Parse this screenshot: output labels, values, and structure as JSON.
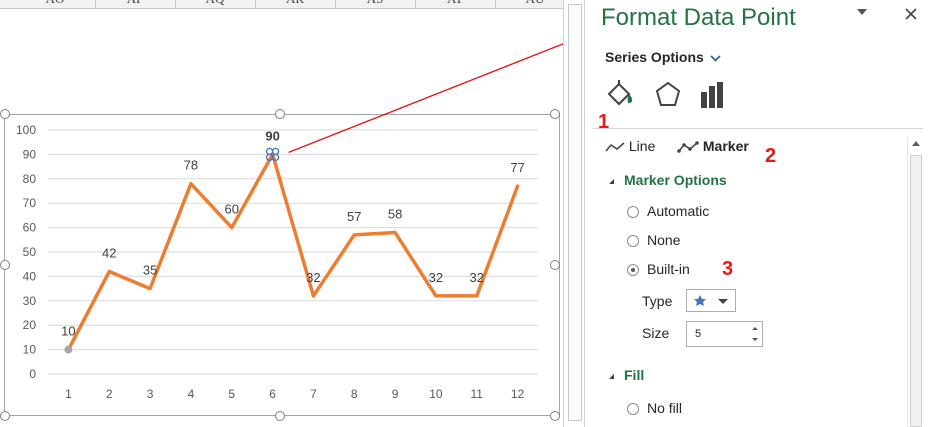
{
  "sheet": {
    "columns": [
      "AO",
      "AP",
      "AQ",
      "AR",
      "AS",
      "AT",
      "AU"
    ]
  },
  "chart_data": {
    "type": "line",
    "categories": [
      "1",
      "2",
      "3",
      "4",
      "5",
      "6",
      "7",
      "8",
      "9",
      "10",
      "11",
      "12"
    ],
    "series": [
      {
        "values": [
          10,
          42,
          35,
          78,
          60,
          90,
          32,
          57,
          58,
          32,
          32,
          77
        ]
      }
    ],
    "data_labels": [
      "10",
      "42",
      "35",
      "78",
      "60",
      "90",
      "32",
      "57",
      "58",
      "32",
      "32",
      "77"
    ],
    "yticks": [
      "0",
      "10",
      "20",
      "30",
      "40",
      "50",
      "60",
      "70",
      "80",
      "90",
      "100"
    ],
    "ylim": [
      0,
      100
    ],
    "grid": true,
    "line_color": "#ed7d31",
    "first_point_color": "#a5a5a5",
    "selected_point_index": 5,
    "selected_marker_color": "#4472c4"
  },
  "pane": {
    "title": "Format Data Point",
    "series_options": "Series Options",
    "tabs": {
      "line": "Line",
      "marker": "Marker"
    },
    "marker_options": {
      "header": "Marker Options",
      "automatic": "Automatic",
      "none": "None",
      "builtin": "Built-in",
      "selected": "builtin",
      "type_label": "Type",
      "size_label": "Size",
      "size_value": "5"
    },
    "fill": {
      "header": "Fill",
      "no_fill": "No fill"
    },
    "accent": "#217346"
  },
  "annotations": {
    "one": "1",
    "two": "2",
    "three": "3",
    "arrow_color": "#e31b1b"
  }
}
